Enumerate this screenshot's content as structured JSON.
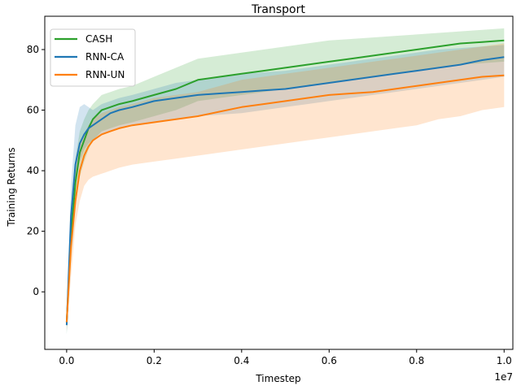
{
  "chart_data": {
    "type": "line",
    "title": "Transport",
    "xlabel": "Timestep",
    "ylabel": "Training Returns",
    "x_offset_label": "1e7",
    "xlim": [
      -0.05,
      1.02
    ],
    "ylim": [
      -19,
      91
    ],
    "x_ticks": [
      0.0,
      0.2,
      0.4,
      0.6,
      0.8,
      1.0
    ],
    "x_tick_labels": [
      "0.0",
      "0.2",
      "0.4",
      "0.6",
      "0.8",
      "1.0"
    ],
    "y_ticks": [
      0,
      20,
      40,
      60,
      80
    ],
    "y_tick_labels": [
      "0",
      "20",
      "40",
      "60",
      "80"
    ],
    "grid": false,
    "legend_position": "top-left",
    "x": [
      0.0,
      0.01,
      0.02,
      0.03,
      0.04,
      0.05,
      0.06,
      0.08,
      0.1,
      0.12,
      0.15,
      0.2,
      0.25,
      0.3,
      0.35,
      0.4,
      0.45,
      0.5,
      0.55,
      0.6,
      0.65,
      0.7,
      0.75,
      0.8,
      0.85,
      0.9,
      0.95,
      1.0
    ],
    "series": [
      {
        "name": "CASH",
        "color": "#2ca02c",
        "values": [
          -10,
          18,
          36,
          46,
          50,
          54,
          57,
          60,
          61,
          62,
          63,
          65,
          67,
          70,
          71,
          72,
          73,
          74,
          75,
          76,
          77,
          78,
          79,
          80,
          81,
          82,
          82.5,
          83
        ],
        "lower": [
          -14,
          10,
          28,
          38,
          43,
          47,
          50,
          53,
          54,
          55,
          56,
          58,
          60,
          63,
          64,
          65,
          66,
          67,
          68,
          69,
          70,
          71,
          72,
          73,
          74,
          75,
          75.5,
          76
        ],
        "upper": [
          -6,
          26,
          44,
          53,
          57,
          60,
          62,
          65,
          66,
          67,
          68,
          71,
          74,
          77,
          78,
          79,
          80,
          81,
          82,
          83,
          83.5,
          84,
          84.5,
          85,
          85.5,
          86,
          86.5,
          87
        ]
      },
      {
        "name": "RNN-CA",
        "color": "#1f77b4",
        "values": [
          -11,
          25,
          42,
          49,
          52,
          54,
          55,
          57,
          59,
          60,
          61,
          63,
          64,
          65,
          65.5,
          66,
          66.5,
          67,
          68,
          69,
          70,
          71,
          72,
          73,
          74,
          75,
          76.5,
          77.5
        ],
        "lower": [
          -14,
          15,
          35,
          43,
          47,
          49,
          50,
          52,
          53,
          54,
          55,
          56,
          57,
          58,
          58.5,
          59,
          60,
          61,
          62,
          63,
          64,
          65,
          66,
          67,
          68,
          69,
          70,
          71
        ],
        "upper": [
          -8,
          35,
          55,
          61,
          62,
          61,
          60,
          62,
          63,
          64,
          65,
          67,
          69,
          70,
          71,
          72,
          72.5,
          73,
          74,
          75,
          76,
          77,
          78,
          79,
          80,
          80.5,
          81,
          81.5
        ]
      },
      {
        "name": "RNN-UN",
        "color": "#ff7f0e",
        "values": [
          -10,
          15,
          30,
          40,
          45,
          48,
          50,
          52,
          53,
          54,
          55,
          56,
          57,
          58,
          59.5,
          61,
          62,
          63,
          64,
          65,
          65.5,
          66,
          67,
          68,
          69,
          70,
          71,
          71.5
        ],
        "lower": [
          -13,
          5,
          22,
          30,
          35,
          37,
          38,
          39,
          40,
          41,
          42,
          43,
          44,
          45,
          46,
          47,
          48,
          49,
          50,
          51,
          52,
          53,
          54,
          55,
          57,
          58,
          60,
          61
        ],
        "upper": [
          -7,
          25,
          40,
          49,
          52,
          55,
          57,
          59,
          60,
          61,
          62,
          64,
          65,
          66,
          68,
          70,
          71,
          72,
          73,
          74,
          75,
          76,
          77,
          78,
          79,
          80,
          81,
          82
        ]
      }
    ]
  }
}
